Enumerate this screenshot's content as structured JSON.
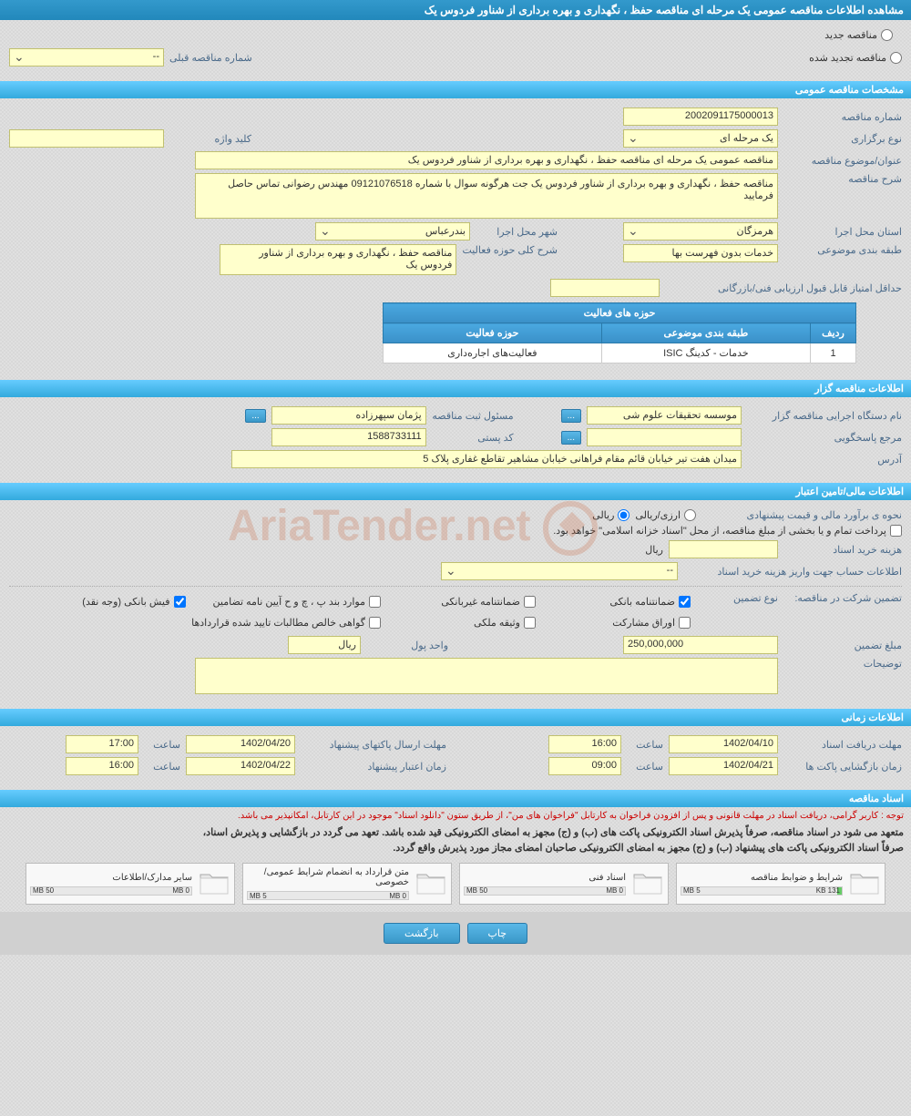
{
  "header": {
    "title": "مشاهده اطلاعات مناقصه عمومی یک مرحله ای مناقصه حفظ ، نگهداری و بهره برداری از شناور فردوس یک"
  },
  "top_options": {
    "new_tender": "مناقصه جدید",
    "renewed_tender": "مناقصه تجدید شده",
    "prev_number_label": "شماره مناقصه قبلی",
    "prev_number_value": "--"
  },
  "sections": {
    "general": "مشخصات مناقصه عمومی",
    "organizer": "اطلاعات مناقصه گزار",
    "financial": "اطلاعات مالی/تامین اعتبار",
    "timing": "اطلاعات زمانی",
    "documents": "اسناد مناقصه"
  },
  "general": {
    "number_label": "شماره مناقصه",
    "number": "2002091175000013",
    "type_label": "نوع برگزاری",
    "type": "یک مرحله ای",
    "keyword_label": "کلید واژه",
    "keyword": "",
    "title_label": "عنوان/موضوع مناقصه",
    "title": "مناقصه عمومی یک مرحله ای مناقصه حفظ ، نگهداری و بهره برداری از شناور فردوس یک",
    "desc_label": "شرح مناقصه",
    "desc": "مناقصه حفظ ، نگهداری و بهره برداری از شناور فردوس یک جت هرگونه سوال با شماره 09121076518 مهندس رضوانی تماس حاصل فرمایید",
    "province_label": "استان محل اجرا",
    "province": "هرمزگان",
    "city_label": "شهر محل اجرا",
    "city": "بندرعباس",
    "category_label": "طبقه بندی موضوعی",
    "category": "خدمات بدون فهرست بها",
    "scope_label": "شرح کلی حوزه فعالیت",
    "scope": "مناقصه حفظ ، نگهداری و بهره برداری از شناور فردوس یک",
    "min_score_label": "حداقل امتیاز قابل قبول ارزیابی فنی/بازرگانی",
    "min_score": ""
  },
  "activity_table": {
    "title": "حوزه های فعالیت",
    "col_row": "ردیف",
    "col_category": "طبقه بندی موضوعی",
    "col_scope": "حوزه فعالیت",
    "rows": [
      {
        "n": "1",
        "category": "خدمات - کدینگ ISIC",
        "scope": "فعالیت‌های اجاره‌داری"
      }
    ]
  },
  "organizer": {
    "agency_label": "نام دستگاه اجرایی مناقصه گزار",
    "agency": "موسسه تحقیقات علوم شی",
    "responsible_label": "مسئول ثبت مناقصه",
    "responsible": "پژمان سپهرزاده",
    "contact_label": "مرجع پاسخگویی",
    "contact": "",
    "postal_label": "کد پستی",
    "postal": "1588733111",
    "address_label": "آدرس",
    "address": "میدان هفت تیر خیابان قائم مقام فراهانی خیابان مشاهیر تقاطع غفاری پلاک 5"
  },
  "financial": {
    "method_label": "نحوه ی برآورد مالی و قیمت پیشنهادی",
    "method_currency": "ارزی/ریالی",
    "method_rial": "ریالی",
    "treasury_note": "پرداخت تمام و یا بخشی از مبلغ مناقصه، از محل \"اسناد خزانه اسلامی\" خواهد بود.",
    "purchase_cost_label": "هزینه خرید اسناد",
    "rial": "ریال",
    "account_label": "اطلاعات حساب جهت واریز هزینه خرید اسناد",
    "account_value": "--",
    "guarantee_label": "تضمین شرکت در مناقصه:",
    "guarantee_type_label": "نوع تضمین",
    "g_bank": "ضمانتنامه بانکی",
    "g_nonbank": "ضمانتنامه غیربانکی",
    "g_clauses": "موارد بند پ ، چ و ح آیین نامه تضامین",
    "g_cash": "فیش بانکی (وجه نقد)",
    "g_bonds": "اوراق مشارکت",
    "g_property": "وثیقه ملکی",
    "g_receivables": "گواهی خالص مطالبات تایید شده قراردادها",
    "amount_label": "مبلغ تضمین",
    "amount": "250,000,000",
    "unit_label": "واحد پول",
    "unit": "ریال",
    "notes_label": "توضیحات",
    "notes": ""
  },
  "timing": {
    "deadline_recv_label": "مهلت دریافت اسناد",
    "deadline_recv_date": "1402/04/10",
    "time_label": "ساعت",
    "deadline_recv_time": "16:00",
    "deadline_send_label": "مهلت ارسال پاکتهای پیشنهاد",
    "deadline_send_date": "1402/04/20",
    "deadline_send_time": "17:00",
    "opening_label": "زمان بازگشایی پاکت ها",
    "opening_date": "1402/04/21",
    "opening_time": "09:00",
    "validity_label": "زمان اعتبار پیشنهاد",
    "validity_date": "1402/04/22",
    "validity_time": "16:00"
  },
  "documents": {
    "notice": "توجه : کاربر گرامی، دریافت اسناد در مهلت قانونی و پس از افزودن فراخوان به کارتابل \"فراخوان های من\"، از طریق ستون \"دانلود اسناد\" موجود در این کارتابل، امکانپذیر می باشد.",
    "rule1": "متعهد می شود در اسناد مناقصه، صرفاً پذیرش اسناد الکترونیکی پاکت های (ب) و (ج) مجهز به امضای الکترونیکی قید شده باشد. تعهد می گردد در بازگشایی و پذیرش اسناد،",
    "rule2": "صرفاً اسناد الکترونیکی پاکت های پیشنهاد (ب) و (ج) مجهز به امضای الکترونیکی صاحبان امضای مجاز مورد پذیرش واقع گردد.",
    "items": [
      {
        "title": "شرایط و ضوابط مناقصه",
        "used": "131 KB",
        "total": "5 MB",
        "fill_pct": 3
      },
      {
        "title": "اسناد فنی",
        "used": "0 MB",
        "total": "50 MB",
        "fill_pct": 0
      },
      {
        "title": "متن قرارداد به انضمام شرایط عمومی/خصوصی",
        "used": "0 MB",
        "total": "5 MB",
        "fill_pct": 0
      },
      {
        "title": "سایر مدارک/اطلاعات",
        "used": "0 MB",
        "total": "50 MB",
        "fill_pct": 0
      }
    ]
  },
  "footer": {
    "print": "چاپ",
    "back": "بازگشت"
  },
  "btn_more": "..."
}
